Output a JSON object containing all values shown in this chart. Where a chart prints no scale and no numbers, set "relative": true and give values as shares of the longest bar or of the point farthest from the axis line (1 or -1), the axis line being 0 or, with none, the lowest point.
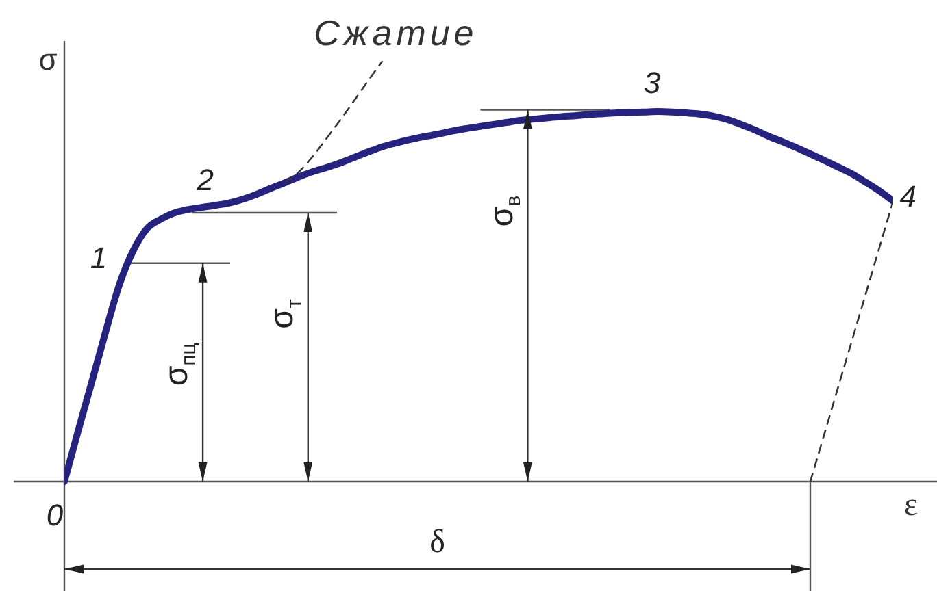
{
  "chart_data": {
    "type": "line",
    "xlabel": "ε",
    "ylabel": "σ",
    "relative": true,
    "tick_labels": false,
    "marker": "none",
    "line_style": "solid",
    "categories": [
      null,
      null,
      null,
      null,
      null,
      null,
      null,
      null,
      null,
      null,
      null,
      null,
      null,
      null,
      null,
      null,
      null,
      null,
      null,
      null,
      null,
      null,
      null,
      null,
      null,
      null,
      null,
      null,
      null,
      null,
      null,
      null,
      null,
      null,
      null,
      null,
      null,
      null,
      null,
      null,
      null,
      null,
      null,
      null,
      null,
      null,
      null,
      null,
      null,
      null,
      null,
      null,
      null,
      null,
      null,
      null,
      null,
      null,
      null,
      null,
      null
    ],
    "series": [
      {
        "color": "#26237e",
        "values": [
          0,
          0.121,
          0.239,
          0.358,
          0.471,
          0.551,
          0.603,
          0.625,
          0.64,
          0.648,
          0.653,
          0.658,
          0.664,
          0.673,
          0.685,
          0.699,
          0.712,
          0.726,
          0.738,
          0.748,
          0.759,
          0.772,
          0.785,
          0.797,
          0.806,
          0.814,
          0.821,
          0.827,
          0.834,
          0.84,
          0.845,
          0.85,
          0.855,
          0.86,
          0.863,
          0.866,
          0.869,
          0.871,
          0.874,
          0.876,
          0.878,
          0.879,
          0.88,
          0.881,
          0.88,
          0.878,
          0.875,
          0.87,
          0.862,
          0.85,
          0.837,
          0.822,
          0.809,
          0.795,
          0.78,
          0.765,
          0.749,
          0.733,
          0.713,
          0.692,
          0.668
        ]
      },
      {
        "name": "Сжатие",
        "color": "#333333",
        "line_style": "dashed",
        "values": [
          null,
          null,
          null,
          null,
          null,
          null,
          null,
          null,
          null,
          null,
          null,
          null,
          null,
          null,
          null,
          null,
          0.712,
          0.738,
          0.775,
          0.818,
          0.862,
          0.908,
          0.955,
          1,
          null,
          null,
          null,
          null,
          null,
          null,
          null,
          null,
          null,
          null,
          null,
          null,
          null,
          null,
          null,
          null,
          null,
          null,
          null,
          null,
          null,
          null,
          null,
          null,
          null,
          null,
          null,
          null,
          null,
          null,
          null,
          null,
          null,
          null,
          null,
          null,
          null
        ]
      },
      {
        "color": "#333333",
        "line_style": "dashed",
        "values": [
          null,
          null,
          null,
          null,
          null,
          null,
          null,
          null,
          null,
          null,
          null,
          null,
          null,
          null,
          null,
          null,
          null,
          null,
          null,
          null,
          null,
          null,
          null,
          null,
          null,
          null,
          null,
          null,
          null,
          null,
          null,
          null,
          null,
          null,
          null,
          null,
          null,
          null,
          null,
          null,
          null,
          null,
          null,
          null,
          null,
          null,
          null,
          null,
          null,
          null,
          null,
          null,
          null,
          null,
          0,
          0.111,
          0.223,
          0.334,
          0.445,
          0.557,
          0.668
        ]
      }
    ],
    "ref_lines": [
      {
        "axis": "y",
        "value": 0.52,
        "label": "σ$_{пц}$"
      },
      {
        "axis": "y",
        "value": 0.64,
        "label": "σ$_{т}$"
      },
      {
        "axis": "y",
        "value": 0.885,
        "label": "σ$_{в}$"
      }
    ],
    "annotations": [
      "0",
      "1",
      "2",
      "3",
      "4",
      "δ"
    ]
  }
}
